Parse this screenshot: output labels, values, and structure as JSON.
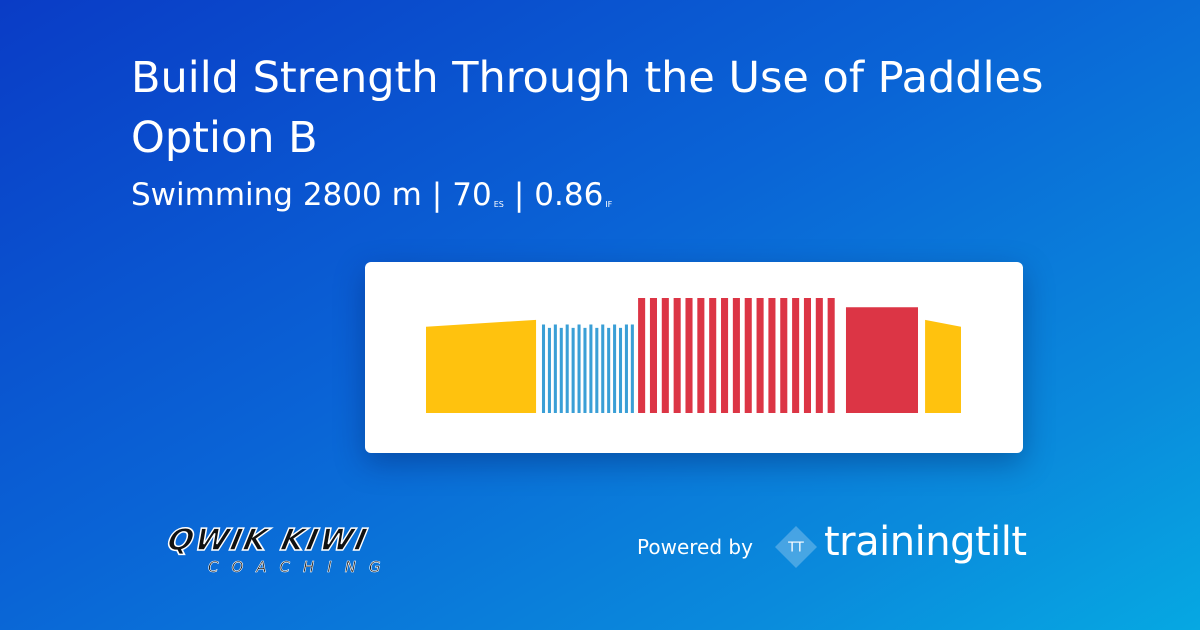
{
  "header": {
    "title": "Build Strength Through the Use of Paddles Option B",
    "subtitle": {
      "distance": "Swimming 2800 m",
      "separator_1": "|",
      "es_value": "70",
      "es_unit": "ES",
      "separator_2": "|",
      "if_value": "0.86",
      "if_unit": "IF"
    }
  },
  "chart_data": {
    "type": "workout",
    "xlim": [
      0,
      2800
    ],
    "ylim": [
      0,
      1
    ],
    "intervals": [
      {
        "color": "#ffc20e",
        "start": [
          0
        ],
        "end": [
          576
        ],
        "from": [
          0.75
        ],
        "to": [
          0.81
        ]
      },
      {
        "color": "#3a9fd6",
        "start": [
          607,
          638,
          669,
          700,
          731,
          762,
          793,
          824,
          855,
          886,
          917,
          948,
          979,
          1010,
          1041,
          1072
        ],
        "end": [
          623,
          654,
          685,
          716,
          747,
          778,
          809,
          840,
          871,
          902,
          933,
          964,
          995,
          1026,
          1057,
          1088
        ],
        "from": [
          0.77,
          0.74,
          0.77,
          0.74,
          0.77,
          0.74,
          0.77,
          0.74,
          0.77,
          0.74,
          0.77,
          0.74,
          0.77,
          0.74,
          0.77,
          0.77
        ],
        "to": [
          0.77,
          0.74,
          0.77,
          0.74,
          0.77,
          0.74,
          0.77,
          0.74,
          0.77,
          0.74,
          0.77,
          0.74,
          0.77,
          0.74,
          0.77,
          0.77
        ]
      },
      {
        "color": "#dc3545",
        "start": [
          1110,
          1172,
          1234,
          1296,
          1358,
          1420,
          1482,
          1544,
          1606,
          1668,
          1730,
          1792,
          1854,
          1916,
          1978,
          2040,
          2102
        ],
        "end": [
          1147,
          1209,
          1271,
          1333,
          1395,
          1457,
          1519,
          1581,
          1643,
          1705,
          1767,
          1829,
          1891,
          1953,
          2015,
          2077,
          2139
        ],
        "from": [
          1,
          1,
          1,
          1,
          1,
          1,
          1,
          1,
          1,
          1,
          1,
          1,
          1,
          1,
          1,
          1,
          1
        ],
        "to": [
          1,
          1,
          1,
          1,
          1,
          1,
          1,
          1,
          1,
          1,
          1,
          1,
          1,
          1,
          1,
          1,
          1
        ]
      },
      {
        "color": "#dc3545",
        "start": [
          2198
        ],
        "end": [
          2575
        ],
        "from": [
          0.92
        ],
        "to": [
          0.92
        ]
      },
      {
        "color": "#ffc20e",
        "start": [
          2612
        ],
        "end": [
          2800
        ],
        "from": [
          0.81
        ],
        "to": [
          0.75
        ]
      }
    ]
  },
  "footer": {
    "coach_logo": "QWIK KIWI",
    "coach_logo_sub": "COACHING",
    "powered_by": "Powered by",
    "brand_icon": "TT",
    "brand": "trainingtilt"
  }
}
